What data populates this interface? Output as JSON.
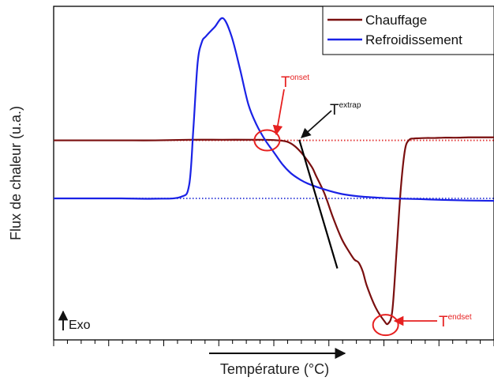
{
  "chart_data": {
    "type": "line",
    "title": "",
    "xlabel": "Température (°C)",
    "ylabel": "Flux de chaleur (u.a.)",
    "x_tick_labels_shown": false,
    "y_tick_labels_shown": false,
    "legend_position": "top-right",
    "series": [
      {
        "name": "Chauffage",
        "color": "#7a0f0f",
        "x": [
          0,
          40,
          80,
          120,
          160,
          200,
          240,
          260,
          275,
          285,
          295,
          305,
          310,
          320,
          330,
          340,
          348,
          355,
          360,
          365,
          370,
          380,
          390,
          395,
          400,
          405,
          410,
          415,
          420,
          425,
          430,
          440,
          450,
          460,
          475,
          490,
          505,
          520
        ],
        "y": [
          0.1,
          0.1,
          0.1,
          0.1,
          0.12,
          0.12,
          0.12,
          0.11,
          0.06,
          -0.1,
          -0.4,
          -0.8,
          -1.1,
          -1.7,
          -2.5,
          -3.2,
          -3.6,
          -3.9,
          -4.0,
          -4.3,
          -4.8,
          -5.5,
          -5.95,
          -6.05,
          -5.6,
          -3.6,
          -1.5,
          -0.2,
          0.12,
          0.16,
          0.17,
          0.18,
          0.18,
          0.19,
          0.19,
          0.2,
          0.2,
          0.2
        ]
      },
      {
        "name": "Refroidissement",
        "color": "#1a22e6",
        "x": [
          0,
          40,
          80,
          120,
          150,
          160,
          165,
          170,
          175,
          180,
          190,
          200,
          210,
          220,
          230,
          240,
          250,
          260,
          270,
          280,
          290,
          300,
          320,
          340,
          360,
          380,
          400,
          430,
          460,
          490,
          520
        ],
        "y": [
          -1.85,
          -1.85,
          -1.85,
          -1.86,
          -1.8,
          -1.4,
          0.5,
          2.7,
          3.4,
          3.6,
          3.9,
          4.2,
          3.6,
          2.5,
          1.3,
          0.6,
          0.1,
          -0.3,
          -0.7,
          -1.0,
          -1.2,
          -1.35,
          -1.55,
          -1.7,
          -1.78,
          -1.82,
          -1.85,
          -1.87,
          -1.9,
          -1.92,
          -1.93
        ]
      }
    ],
    "baselines": [
      {
        "series": "Chauffage",
        "style": "dotted",
        "color": "#e23030",
        "y": 0.1
      },
      {
        "series": "Refroidissement",
        "style": "dotted",
        "color": "#2a36d6",
        "y": -1.85
      }
    ],
    "tangent": {
      "color": "#000000",
      "points": [
        [
          290,
          0.12
        ],
        [
          335,
          -4.2
        ]
      ]
    },
    "xlim": [
      0,
      520
    ],
    "ylim": [
      -6.6,
      4.6
    ],
    "annotations": [
      {
        "text": "T",
        "sup": "onset",
        "color": "#e62020",
        "circle_at": [
          252,
          0.1
        ],
        "arrow_to": [
          252,
          0.2
        ]
      },
      {
        "text": "T",
        "sup": "extrap",
        "color": "#111111",
        "arrow_to": [
          290,
          0.12
        ]
      },
      {
        "text": "T",
        "sup": "endset",
        "color": "#e62020",
        "circle_at": [
          392,
          -6.1
        ],
        "arrow_to": [
          402,
          -6.1
        ]
      }
    ],
    "exo_label": "Exo"
  }
}
